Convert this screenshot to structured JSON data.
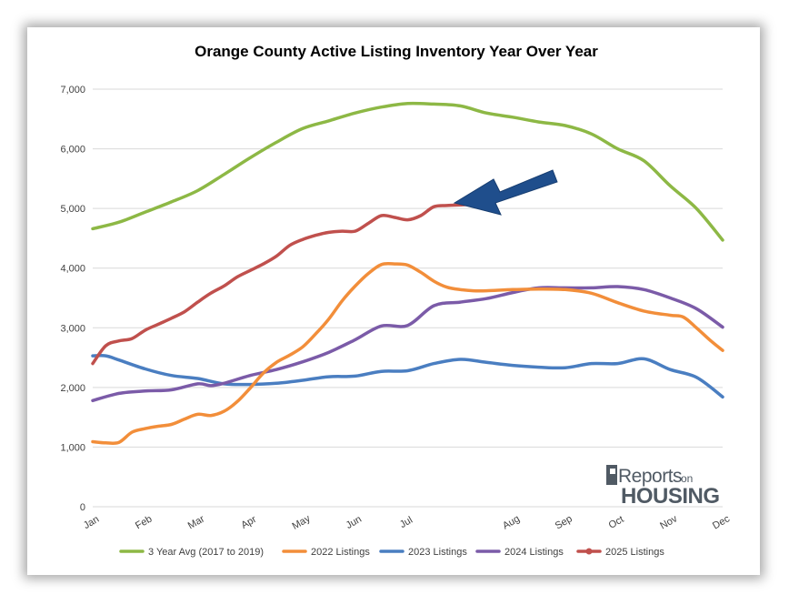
{
  "chart_data": {
    "type": "line",
    "title": "Orange County Active Listing Inventory Year Over Year",
    "xlabel": "",
    "ylabel": "",
    "ylim": [
      0,
      7000
    ],
    "y_ticks": [
      0,
      1000,
      2000,
      3000,
      4000,
      5000,
      6000,
      7000
    ],
    "y_tick_labels": [
      "0",
      "1,000",
      "2,000",
      "3,000",
      "4,000",
      "5,000",
      "6,000",
      "7,000"
    ],
    "x_range": [
      0,
      48
    ],
    "x_ticks": [
      {
        "label": "Jan",
        "x": 0
      },
      {
        "label": "Feb",
        "x": 4
      },
      {
        "label": "Mar",
        "x": 8
      },
      {
        "label": "Apr",
        "x": 12
      },
      {
        "label": "May",
        "x": 16
      },
      {
        "label": "Jun",
        "x": 20
      },
      {
        "label": "Jul",
        "x": 24
      },
      {
        "label": "Aug",
        "x": 32
      },
      {
        "label": "Sep",
        "x": 36
      },
      {
        "label": "Oct",
        "x": 40
      },
      {
        "label": "Nov",
        "x": 44
      },
      {
        "label": "Dec",
        "x": 48
      }
    ],
    "grid": "horizontal",
    "legend": "bottom",
    "series": [
      {
        "name": "3 Year Avg (2017 to 2019)",
        "color": "#8DB845",
        "x": [
          0,
          2,
          4,
          6,
          8,
          10,
          12,
          14,
          16,
          18,
          20,
          22,
          24,
          26,
          28,
          30,
          32,
          34,
          36,
          38,
          40,
          42,
          44,
          46,
          48
        ],
        "y": [
          4660,
          4770,
          4940,
          5110,
          5300,
          5570,
          5850,
          6110,
          6340,
          6470,
          6600,
          6700,
          6760,
          6750,
          6720,
          6600,
          6530,
          6450,
          6390,
          6250,
          6000,
          5800,
          5380,
          5000,
          4470
        ]
      },
      {
        "name": "2022 Listings",
        "color": "#F28E3A",
        "x": [
          0,
          1,
          2,
          3,
          4,
          5,
          6,
          7,
          8,
          9,
          10,
          11,
          12,
          13,
          14,
          15,
          16,
          17,
          18,
          19,
          20,
          21,
          22,
          23,
          24,
          25,
          26,
          27,
          28,
          29,
          30,
          32,
          34,
          36,
          38,
          40,
          42,
          44,
          45,
          46,
          47,
          48
        ],
        "y": [
          1090,
          1070,
          1080,
          1250,
          1310,
          1350,
          1380,
          1470,
          1550,
          1530,
          1600,
          1760,
          1990,
          2240,
          2420,
          2540,
          2680,
          2900,
          3150,
          3450,
          3700,
          3910,
          4060,
          4070,
          4050,
          3930,
          3780,
          3680,
          3640,
          3620,
          3620,
          3640,
          3650,
          3640,
          3580,
          3420,
          3280,
          3210,
          3180,
          3000,
          2800,
          2620
        ]
      },
      {
        "name": "2023 Listings",
        "color": "#4A7EC1",
        "x": [
          0,
          1,
          2,
          4,
          6,
          8,
          10,
          12,
          14,
          16,
          18,
          20,
          22,
          24,
          26,
          28,
          30,
          32,
          34,
          36,
          38,
          40,
          42,
          44,
          46,
          48
        ],
        "y": [
          2530,
          2530,
          2460,
          2310,
          2200,
          2150,
          2060,
          2050,
          2070,
          2120,
          2180,
          2190,
          2270,
          2280,
          2400,
          2470,
          2420,
          2370,
          2340,
          2330,
          2400,
          2400,
          2480,
          2300,
          2170,
          1840
        ]
      },
      {
        "name": "2024 Listings",
        "color": "#7B5BA8",
        "x": [
          0,
          2,
          4,
          6,
          8,
          9,
          10,
          12,
          14,
          16,
          18,
          20,
          22,
          24,
          26,
          28,
          30,
          32,
          34,
          36,
          38,
          40,
          42,
          44,
          46,
          48
        ],
        "y": [
          1780,
          1900,
          1940,
          1960,
          2060,
          2030,
          2070,
          2200,
          2300,
          2430,
          2590,
          2800,
          3030,
          3040,
          3370,
          3430,
          3490,
          3590,
          3670,
          3670,
          3670,
          3690,
          3640,
          3500,
          3320,
          3010
        ]
      },
      {
        "name": "2025 Listings",
        "color": "#C0504D",
        "x": [
          0,
          1,
          2,
          3,
          4,
          5,
          6,
          7,
          8,
          9,
          10,
          11,
          12,
          13,
          14,
          15,
          16,
          17,
          18,
          19,
          20,
          21,
          22,
          23,
          24,
          25,
          26,
          27,
          28,
          29,
          30
        ],
        "y": [
          2400,
          2700,
          2780,
          2820,
          2960,
          3060,
          3160,
          3270,
          3430,
          3580,
          3700,
          3850,
          3960,
          4070,
          4200,
          4380,
          4480,
          4550,
          4600,
          4620,
          4620,
          4750,
          4880,
          4850,
          4810,
          4880,
          5030,
          5050,
          5060,
          5070,
          5070
        ]
      }
    ],
    "annotations": [
      {
        "type": "arrow",
        "color": "#1F4E8C",
        "points_to": "2025 Listings latest value"
      }
    ]
  },
  "branding": {
    "logo_text_1": "Reports",
    "logo_text_2": "on",
    "logo_text_3": "HOUSING"
  }
}
